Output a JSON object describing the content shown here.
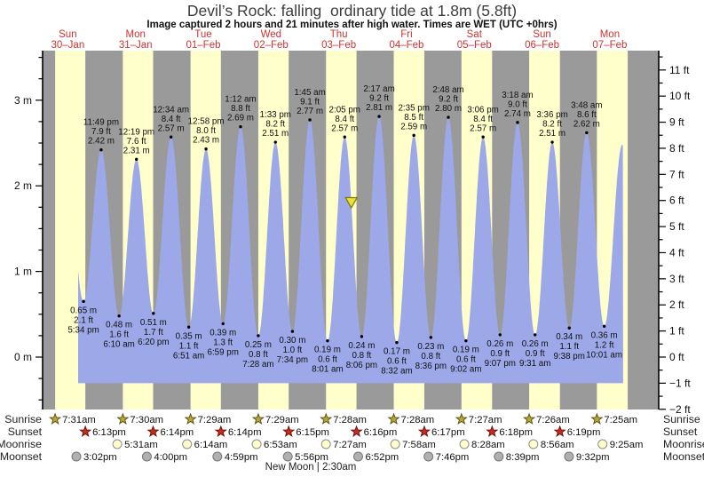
{
  "title": "Devil’s Rock: falling  ordinary tide at 1.8m (5.8ft)",
  "subtitle": "Image captured 2 hours and 21 minutes after high water. Times are WET (UTC +0hrs)",
  "moon_caption": "New Moon | 2:30am",
  "row_labels": {
    "sunrise": "Sunrise",
    "sunset": "Sunset",
    "moonrise": "Moonrise",
    "moonset": "Moonset"
  },
  "colors": {
    "day_band": "#ffffcc",
    "night_band": "#9a9a9a",
    "tide_fill": "#9da8e8",
    "date_red": "#cc3333",
    "axis_black": "#000000",
    "sunrise_star": "#b8a839",
    "sunrise_star_edge": "#5c5516",
    "sunset_star": "#cc2a1e",
    "sunset_star_edge": "#6e140d",
    "moonrise_fill": "#ffffcc",
    "moonrise_edge": "#8c8c8c",
    "moonset_fill": "#b0b0b0",
    "moonset_edge": "#777777",
    "marker_triangle": "#e8e23a",
    "marker_triangle_edge": "#857a00"
  },
  "chart_data": {
    "type": "area",
    "title": "Devil’s Rock tide curve, Sun 30-Jan to Mon 07-Feb",
    "y_axis_left": {
      "unit": "m",
      "major_ticks": [
        0,
        1,
        2,
        3
      ],
      "minor_step": 0.25,
      "range_m": [
        -0.61,
        3.58
      ]
    },
    "y_axis_right": {
      "unit": "ft",
      "major_ticks": [
        -2,
        -1,
        0,
        1,
        2,
        3,
        4,
        5,
        6,
        7,
        8,
        9,
        10,
        11
      ],
      "minor_step": 0.5
    },
    "days": [
      {
        "name": "Sun",
        "date": "30–Jan"
      },
      {
        "name": "Mon",
        "date": "31–Jan"
      },
      {
        "name": "Tue",
        "date": "01–Feb"
      },
      {
        "name": "Wed",
        "date": "02–Feb"
      },
      {
        "name": "Thu",
        "date": "03–Feb"
      },
      {
        "name": "Fri",
        "date": "04–Feb"
      },
      {
        "name": "Sat",
        "date": "05–Feb"
      },
      {
        "name": "Sun",
        "date": "06–Feb"
      },
      {
        "name": "Mon",
        "date": "07–Feb"
      }
    ],
    "tide_events": [
      {
        "t": 17.567,
        "type": "low",
        "m": "0.65 m",
        "ft": "2.1 ft",
        "time": "5:34 pm"
      },
      {
        "t": 23.817,
        "type": "high",
        "m": "2.42 m",
        "ft": "7.9 ft",
        "time": "11:49 pm"
      },
      {
        "t": 30.167,
        "type": "low",
        "m": "0.48 m",
        "ft": "1.6 ft",
        "time": "6:10 am"
      },
      {
        "t": 36.317,
        "type": "high",
        "m": "2.31 m",
        "ft": "7.6 ft",
        "time": "12:19 pm"
      },
      {
        "t": 42.333,
        "type": "low",
        "m": "0.51 m",
        "ft": "1.7 ft",
        "time": "6:20 pm"
      },
      {
        "t": 48.567,
        "type": "high",
        "m": "2.57 m",
        "ft": "8.4 ft",
        "time": "12:34 am"
      },
      {
        "t": 54.85,
        "type": "low",
        "m": "0.35 m",
        "ft": "1.1 ft",
        "time": "6:51 am"
      },
      {
        "t": 60.967,
        "type": "high",
        "m": "2.43 m",
        "ft": "8.0 ft",
        "time": "12:58 pm"
      },
      {
        "t": 66.983,
        "type": "low",
        "m": "0.39 m",
        "ft": "1.3 ft",
        "time": "6:59 pm"
      },
      {
        "t": 73.2,
        "type": "high",
        "m": "2.69 m",
        "ft": "8.8 ft",
        "time": "1:12 am"
      },
      {
        "t": 79.467,
        "type": "low",
        "m": "0.25 m",
        "ft": "0.8 ft",
        "time": "7:28 am"
      },
      {
        "t": 85.55,
        "type": "high",
        "m": "2.51 m",
        "ft": "8.2 ft",
        "time": "1:33 pm"
      },
      {
        "t": 91.567,
        "type": "low",
        "m": "0.30 m",
        "ft": "1.0 ft",
        "time": "7:34 pm"
      },
      {
        "t": 97.75,
        "type": "high",
        "m": "2.77 m",
        "ft": "9.1 ft",
        "time": "1:45 am"
      },
      {
        "t": 104.017,
        "type": "low",
        "m": "0.19 m",
        "ft": "0.6 ft",
        "time": "8:01 am"
      },
      {
        "t": 110.083,
        "type": "high",
        "m": "2.57 m",
        "ft": "8.4 ft",
        "time": "2:05 pm"
      },
      {
        "t": 116.1,
        "type": "low",
        "m": "0.24 m",
        "ft": "0.8 ft",
        "time": "8:06 pm"
      },
      {
        "t": 122.283,
        "type": "high",
        "m": "2.81 m",
        "ft": "9.2 ft",
        "time": "2:17 am"
      },
      {
        "t": 128.533,
        "type": "low",
        "m": "0.17 m",
        "ft": "0.6 ft",
        "time": "8:32 am"
      },
      {
        "t": 134.583,
        "type": "high",
        "m": "2.59 m",
        "ft": "8.5 ft",
        "time": "2:35 pm"
      },
      {
        "t": 140.6,
        "type": "low",
        "m": "0.23 m",
        "ft": "0.8 ft",
        "time": "8:36 pm"
      },
      {
        "t": 146.8,
        "type": "high",
        "m": "2.80 m",
        "ft": "9.2 ft",
        "time": "2:48 am"
      },
      {
        "t": 153.033,
        "type": "low",
        "m": "0.19 m",
        "ft": "0.6 ft",
        "time": "9:02 am"
      },
      {
        "t": 159.1,
        "type": "high",
        "m": "2.57 m",
        "ft": "8.4 ft",
        "time": "3:06 pm"
      },
      {
        "t": 165.117,
        "type": "low",
        "m": "0.26 m",
        "ft": "0.9 ft",
        "time": "9:07 pm"
      },
      {
        "t": 171.3,
        "type": "high",
        "m": "2.74 m",
        "ft": "9.0 ft",
        "time": "3:18 am"
      },
      {
        "t": 177.517,
        "type": "low",
        "m": "0.26 m",
        "ft": "0.9 ft",
        "time": "9:31 am"
      },
      {
        "t": 183.6,
        "type": "high",
        "m": "2.51 m",
        "ft": "8.2 ft",
        "time": "3:36 pm"
      },
      {
        "t": 189.633,
        "type": "low",
        "m": "0.34 m",
        "ft": "1.1 ft",
        "time": "9:38 pm"
      },
      {
        "t": 195.8,
        "type": "high",
        "m": "2.62 m",
        "ft": "8.6 ft",
        "time": "3:48 am"
      },
      {
        "t": 202.017,
        "type": "low",
        "m": "0.36 m",
        "ft": "1.2 ft",
        "time": "10:01 am"
      }
    ],
    "current_marker": {
      "shape": "triangle-down",
      "level_m": 1.8,
      "t": 112.43,
      "note": "2 hours and 21 minutes after high water"
    },
    "sun_events": {
      "sunrise": [
        {
          "t": 7.517,
          "label": "7:31am"
        },
        {
          "t": 31.5,
          "label": "7:30am"
        },
        {
          "t": 55.483,
          "label": "7:29am"
        },
        {
          "t": 79.483,
          "label": "7:29am"
        },
        {
          "t": 103.467,
          "label": "7:28am"
        },
        {
          "t": 127.467,
          "label": "7:28am"
        },
        {
          "t": 151.45,
          "label": "7:27am"
        },
        {
          "t": 175.433,
          "label": "7:26am"
        },
        {
          "t": 199.417,
          "label": "7:25am"
        }
      ],
      "sunset": [
        {
          "t": 18.217,
          "label": "6:13pm"
        },
        {
          "t": 42.233,
          "label": "6:14pm"
        },
        {
          "t": 66.233,
          "label": "6:14pm"
        },
        {
          "t": 90.25,
          "label": "6:15pm"
        },
        {
          "t": 114.267,
          "label": "6:16pm"
        },
        {
          "t": 138.283,
          "label": "6:17pm"
        },
        {
          "t": 162.3,
          "label": "6:18pm"
        },
        {
          "t": 186.317,
          "label": "6:19pm"
        }
      ]
    },
    "moon_events": {
      "moonrise": [
        {
          "t": 29.517,
          "label": "5:31am"
        },
        {
          "t": 54.233,
          "label": "6:14am"
        },
        {
          "t": 78.883,
          "label": "6:53am"
        },
        {
          "t": 103.45,
          "label": "7:27am"
        },
        {
          "t": 127.967,
          "label": "7:58am"
        },
        {
          "t": 152.467,
          "label": "8:28am"
        },
        {
          "t": 176.933,
          "label": "8:56am"
        },
        {
          "t": 201.417,
          "label": "9:25am"
        }
      ],
      "moonset": [
        {
          "t": 15.033,
          "label": "3:02pm"
        },
        {
          "t": 40.0,
          "label": "4:00pm"
        },
        {
          "t": 64.983,
          "label": "4:59pm"
        },
        {
          "t": 89.933,
          "label": "5:56pm"
        },
        {
          "t": 114.867,
          "label": "6:52pm"
        },
        {
          "t": 139.767,
          "label": "7:46pm"
        },
        {
          "t": 164.65,
          "label": "8:39pm"
        },
        {
          "t": 189.533,
          "label": "9:32pm"
        }
      ]
    }
  }
}
